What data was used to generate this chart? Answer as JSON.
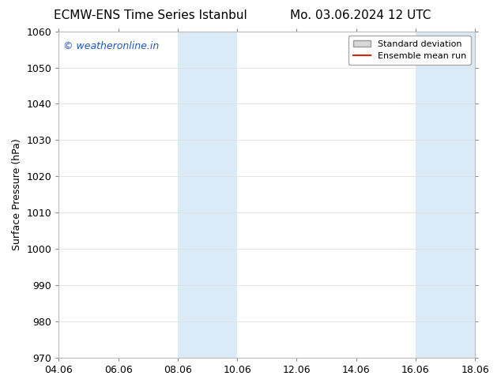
{
  "title_left": "ECMW-ENS Time Series Istanbul",
  "title_right": "Mo. 03.06.2024 12 UTC",
  "ylabel": "Surface Pressure (hPa)",
  "ylim": [
    970,
    1060
  ],
  "yticks": [
    970,
    980,
    990,
    1000,
    1010,
    1020,
    1030,
    1040,
    1050,
    1060
  ],
  "xtick_labels": [
    "04.06",
    "06.06",
    "08.06",
    "10.06",
    "12.06",
    "14.06",
    "16.06",
    "18.06"
  ],
  "xtick_positions": [
    0,
    2,
    4,
    6,
    8,
    10,
    12,
    14
  ],
  "xlim": [
    0,
    14
  ],
  "shaded_bands": [
    {
      "x_start": 4.0,
      "x_end": 4.667
    },
    {
      "x_start": 4.667,
      "x_end": 6.0
    },
    {
      "x_start": 12.0,
      "x_end": 12.667
    },
    {
      "x_start": 12.667,
      "x_end": 14.0
    }
  ],
  "shade_color": "#daeaf7",
  "watermark_text": "© weatheronline.in",
  "watermark_color": "#2255bb",
  "legend_std_label": "Standard deviation",
  "legend_mean_label": "Ensemble mean run",
  "legend_std_facecolor": "#d8d8d8",
  "legend_std_edgecolor": "#999999",
  "legend_mean_color": "#dd2200",
  "background_color": "#ffffff",
  "title_fontsize": 11,
  "axis_fontsize": 9,
  "tick_fontsize": 9,
  "watermark_fontsize": 9,
  "legend_fontsize": 8
}
